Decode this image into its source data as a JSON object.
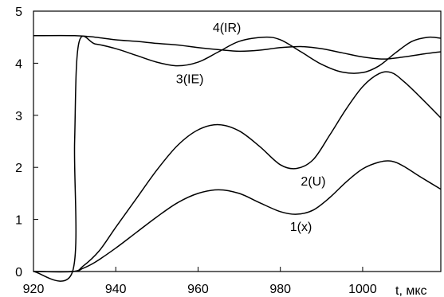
{
  "chart_data": {
    "type": "line",
    "title": "",
    "xlabel": "t, мкс",
    "ylabel": "",
    "xlim": [
      920,
      1019
    ],
    "ylim": [
      0,
      5
    ],
    "grid": false,
    "x_ticks": [
      920,
      940,
      960,
      980,
      1000
    ],
    "x_tick_labels": [
      "920",
      "940",
      "960",
      "980",
      "1000"
    ],
    "y_ticks": [
      0,
      1,
      2,
      3,
      4,
      5
    ],
    "y_tick_labels": [
      "0",
      "1",
      "2",
      "3",
      "4",
      "5"
    ],
    "series": [
      {
        "name": "1(x)",
        "x": [
          920,
          929.5,
          932,
          935,
          940,
          945,
          950,
          955,
          960,
          965,
          970,
          975,
          980,
          984,
          988,
          992,
          996,
          1000,
          1004,
          1007,
          1010,
          1014,
          1019
        ],
        "y": [
          0,
          0,
          0.06,
          0.18,
          0.45,
          0.75,
          1.05,
          1.32,
          1.5,
          1.57,
          1.5,
          1.32,
          1.15,
          1.1,
          1.18,
          1.42,
          1.72,
          1.97,
          2.1,
          2.12,
          2.02,
          1.82,
          1.58
        ]
      },
      {
        "name": "2(U)",
        "x": [
          920,
          929.5,
          932,
          936,
          940,
          945,
          950,
          955,
          960,
          965,
          970,
          975,
          980,
          984,
          988,
          992,
          996,
          1000,
          1004,
          1007,
          1010,
          1014,
          1019
        ],
        "y": [
          0,
          0,
          0.1,
          0.4,
          0.85,
          1.4,
          1.95,
          2.42,
          2.72,
          2.82,
          2.7,
          2.4,
          2.05,
          1.98,
          2.15,
          2.62,
          3.12,
          3.55,
          3.8,
          3.82,
          3.65,
          3.35,
          2.95
        ]
      },
      {
        "name": "3(IE)",
        "x": [
          920,
          929.5,
          930,
          931,
          935,
          940,
          945,
          950,
          955,
          960,
          965,
          970,
          976,
          980,
          985,
          990,
          995,
          1000,
          1004,
          1008,
          1012,
          1016,
          1019
        ],
        "y": [
          0,
          0,
          2.5,
          4.38,
          4.37,
          4.28,
          4.15,
          4.02,
          3.95,
          4.02,
          4.22,
          4.42,
          4.5,
          4.45,
          4.22,
          3.98,
          3.83,
          3.82,
          3.95,
          4.2,
          4.42,
          4.5,
          4.48
        ]
      },
      {
        "name": "4(IR)",
        "x": [
          920,
          930,
          935,
          940,
          945,
          950,
          955,
          960,
          965,
          970,
          975,
          980,
          985,
          990,
          995,
          1000,
          1005,
          1010,
          1015,
          1019
        ],
        "y": [
          4.53,
          4.53,
          4.5,
          4.45,
          4.42,
          4.38,
          4.35,
          4.3,
          4.26,
          4.23,
          4.25,
          4.3,
          4.32,
          4.28,
          4.2,
          4.12,
          4.08,
          4.12,
          4.18,
          4.22
        ]
      }
    ],
    "annotations": [
      {
        "text": "4(IR)",
        "x": 967,
        "y": 4.6
      },
      {
        "text": "3(IE)",
        "x": 958,
        "y": 3.62
      },
      {
        "text": "2(U)",
        "x": 988,
        "y": 1.65
      },
      {
        "text": "1(x)",
        "x": 985,
        "y": 0.78
      }
    ]
  }
}
